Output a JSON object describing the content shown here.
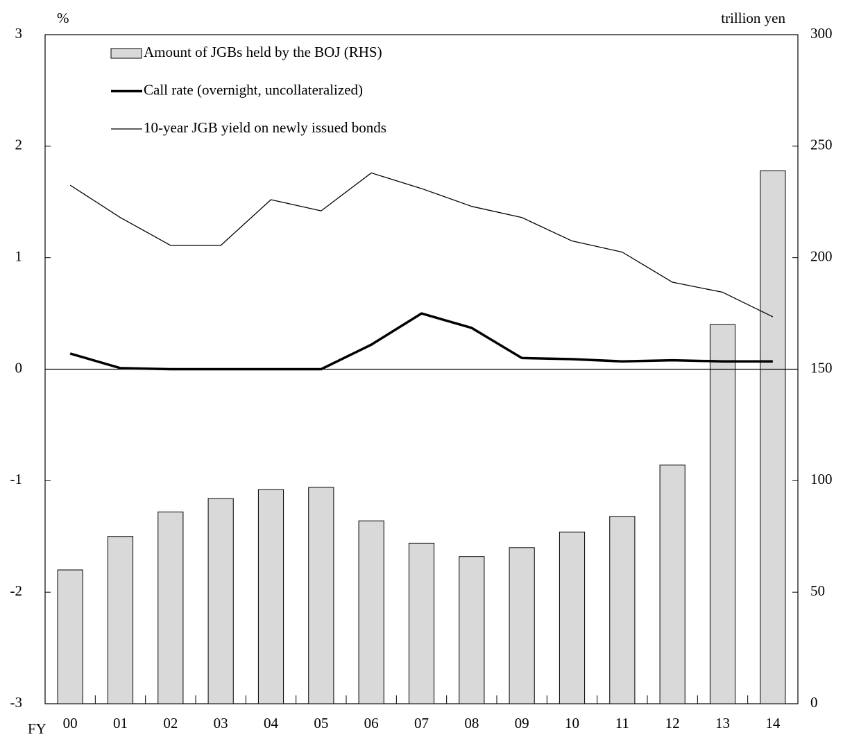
{
  "chart_data": {
    "type": "bar",
    "y_label": "%",
    "y2_label": "trillion yen",
    "x_label": "FY",
    "categories": [
      "00",
      "01",
      "02",
      "03",
      "04",
      "05",
      "06",
      "07",
      "08",
      "09",
      "10",
      "11",
      "12",
      "13",
      "14"
    ],
    "series": [
      {
        "name": "Amount of JGBs held by the BOJ (RHS)",
        "type": "bar",
        "axis": "y2",
        "color": "#d9d9d9",
        "values": [
          60,
          75,
          86,
          92,
          96,
          97,
          82,
          72,
          66,
          70,
          77,
          84,
          107,
          170,
          239
        ]
      },
      {
        "name": "Call rate (overnight, uncollateralized)",
        "type": "line",
        "color": "#000000",
        "line_width": 3.5,
        "values": [
          0.14,
          0.01,
          0.0,
          0.0,
          0.0,
          0.0,
          0.22,
          0.5,
          0.37,
          0.1,
          0.09,
          0.07,
          0.08,
          0.07,
          0.07
        ]
      },
      {
        "name": "10-year JGB yield on newly issued bonds",
        "type": "line",
        "color": "#000000",
        "line_width": 1.3,
        "values": [
          1.65,
          1.36,
          1.11,
          1.11,
          1.52,
          1.42,
          1.76,
          1.62,
          1.46,
          1.36,
          1.15,
          1.05,
          0.78,
          0.69,
          0.47
        ]
      }
    ],
    "ylim": [
      -3,
      3
    ],
    "yticks": [
      -3,
      -2,
      -1,
      0,
      1,
      2,
      3
    ],
    "y2lim": [
      0,
      300
    ],
    "y2ticks": [
      0,
      50,
      100,
      150,
      200,
      250,
      300
    ],
    "zero_line": true,
    "legend": "upper left"
  }
}
